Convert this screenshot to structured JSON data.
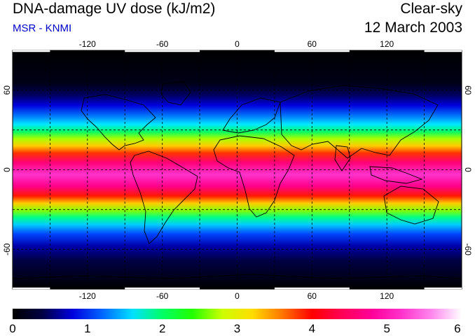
{
  "header": {
    "title": "DNA-damage UV dose (kJ/m2)",
    "source": "MSR - KNMI",
    "condition": "Clear-sky",
    "date": "12 March 2003"
  },
  "map": {
    "lon_ticks": [
      "-120",
      "-60",
      "0",
      "60",
      "120"
    ],
    "lat_ticks": [
      "60",
      "0",
      "-60"
    ],
    "lon_range": [
      -180,
      180
    ],
    "lat_range": [
      -90,
      90
    ]
  },
  "colorbar": {
    "labels": [
      "0",
      "1",
      "2",
      "3",
      "4",
      "5",
      "6"
    ],
    "range": [
      0,
      6
    ],
    "colors": [
      "#000000",
      "#000044",
      "#0000dd",
      "#0066ff",
      "#00e0ff",
      "#00ff66",
      "#22ff00",
      "#ccff00",
      "#ffdd00",
      "#ff7700",
      "#ff0000",
      "#ff0055",
      "#ff0099",
      "#ff33cc",
      "#ff88ee",
      "#ffffff"
    ]
  }
}
